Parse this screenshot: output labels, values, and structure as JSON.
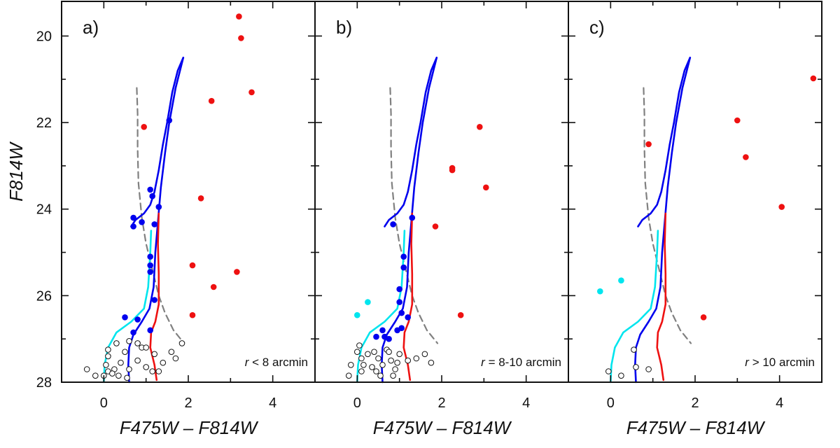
{
  "chart_data": {
    "type": "scatter",
    "figure_ylabel": "F814W",
    "xlabel": "F475W – F814W",
    "xlim": [
      -1.0,
      5.0
    ],
    "ylim": [
      28,
      19.2
    ],
    "xticks": [
      0,
      2,
      4
    ],
    "yticks": [
      20,
      22,
      24,
      26,
      28
    ],
    "colors": {
      "red": "#ee1111",
      "blue": "#0000ee",
      "cyan": "#00e5ee",
      "open": "#111111",
      "dashed": "#808080"
    },
    "isochrones": [
      {
        "name": "dashed",
        "style": "dashed",
        "color": "#808080",
        "points": [
          [
            0.78,
            21.2
          ],
          [
            0.8,
            21.8
          ],
          [
            0.8,
            22.6
          ],
          [
            0.82,
            23.4
          ],
          [
            0.9,
            24.2
          ],
          [
            1.0,
            24.8
          ],
          [
            1.15,
            25.4
          ],
          [
            1.3,
            26.0
          ],
          [
            1.45,
            26.4
          ],
          [
            1.65,
            26.8
          ],
          [
            1.9,
            27.1
          ]
        ]
      },
      {
        "name": "cyan",
        "style": "solid",
        "color": "#00e5ee",
        "points": [
          [
            0.0,
            28.0
          ],
          [
            0.02,
            27.6
          ],
          [
            0.1,
            27.2
          ],
          [
            0.3,
            26.85
          ],
          [
            0.65,
            26.6
          ],
          [
            0.95,
            26.3
          ],
          [
            1.05,
            25.8
          ],
          [
            1.1,
            25.0
          ],
          [
            1.12,
            24.5
          ]
        ]
      },
      {
        "name": "blue-ms",
        "style": "solid",
        "color": "#0000ee",
        "points": [
          [
            0.6,
            28.0
          ],
          [
            0.58,
            27.6
          ],
          [
            0.6,
            27.2
          ],
          [
            0.7,
            26.9
          ],
          [
            0.9,
            26.6
          ],
          [
            1.08,
            26.3
          ],
          [
            1.18,
            25.8
          ],
          [
            1.22,
            25.0
          ],
          [
            1.28,
            24.3
          ],
          [
            1.35,
            23.5
          ],
          [
            1.45,
            22.7
          ],
          [
            1.55,
            22.0
          ],
          [
            1.7,
            21.2
          ],
          [
            1.88,
            20.5
          ]
        ]
      },
      {
        "name": "blue-branch",
        "style": "solid",
        "color": "#0000ee",
        "points": [
          [
            0.65,
            24.4
          ],
          [
            0.75,
            24.25
          ],
          [
            0.95,
            24.1
          ],
          [
            1.1,
            23.9
          ],
          [
            1.2,
            23.6
          ],
          [
            1.3,
            23.1
          ],
          [
            1.4,
            22.5
          ],
          [
            1.5,
            22.0
          ],
          [
            1.62,
            21.3
          ],
          [
            1.75,
            20.8
          ],
          [
            1.88,
            20.5
          ]
        ]
      },
      {
        "name": "red",
        "style": "solid",
        "color": "#ee1111",
        "points": [
          [
            1.25,
            27.95
          ],
          [
            1.2,
            27.6
          ],
          [
            1.1,
            27.2
          ],
          [
            1.12,
            26.85
          ],
          [
            1.22,
            26.6
          ],
          [
            1.3,
            26.2
          ],
          [
            1.3,
            25.5
          ],
          [
            1.28,
            24.8
          ],
          [
            1.3,
            24.1
          ]
        ]
      }
    ],
    "panels": [
      {
        "label": "a)",
        "annotation_r": "r",
        "annotation_rest": "< 8 arcmin",
        "series": [
          {
            "name": "red",
            "points": [
              [
                3.2,
                19.55
              ],
              [
                3.25,
                20.05
              ],
              [
                3.5,
                21.3
              ],
              [
                2.55,
                21.5
              ],
              [
                0.95,
                22.1
              ],
              [
                2.3,
                23.75
              ],
              [
                2.1,
                25.3
              ],
              [
                3.15,
                25.45
              ],
              [
                2.6,
                25.8
              ],
              [
                2.1,
                26.45
              ]
            ]
          },
          {
            "name": "blue",
            "points": [
              [
                1.55,
                21.95
              ],
              [
                1.1,
                23.55
              ],
              [
                1.15,
                23.7
              ],
              [
                1.3,
                23.95
              ],
              [
                0.7,
                24.2
              ],
              [
                0.9,
                24.3
              ],
              [
                0.7,
                24.4
              ],
              [
                1.2,
                24.35
              ],
              [
                1.1,
                25.1
              ],
              [
                1.1,
                25.3
              ],
              [
                1.1,
                25.45
              ],
              [
                1.2,
                26.1
              ],
              [
                0.5,
                26.5
              ],
              [
                0.8,
                26.55
              ],
              [
                1.1,
                26.8
              ],
              [
                0.7,
                26.85
              ]
            ]
          },
          {
            "name": "open",
            "points": [
              [
                0.3,
                27.1
              ],
              [
                0.1,
                27.25
              ],
              [
                0.1,
                27.4
              ],
              [
                0.05,
                27.6
              ],
              [
                0.1,
                27.75
              ],
              [
                -0.4,
                27.7
              ],
              [
                -0.2,
                27.85
              ],
              [
                0.0,
                27.85
              ],
              [
                0.25,
                27.7
              ],
              [
                0.5,
                27.3
              ],
              [
                0.6,
                27.05
              ],
              [
                0.8,
                27.1
              ],
              [
                0.9,
                27.2
              ],
              [
                1.0,
                27.2
              ],
              [
                1.2,
                27.35
              ],
              [
                1.4,
                27.55
              ],
              [
                1.6,
                27.3
              ],
              [
                1.7,
                27.45
              ],
              [
                1.85,
                27.1
              ],
              [
                0.4,
                27.55
              ],
              [
                0.6,
                27.7
              ],
              [
                0.8,
                27.5
              ],
              [
                1.0,
                27.65
              ],
              [
                0.35,
                27.85
              ],
              [
                0.55,
                27.9
              ],
              [
                1.15,
                27.75
              ],
              [
                1.3,
                27.75
              ],
              [
                0.2,
                27.8
              ]
            ]
          }
        ]
      },
      {
        "label": "b)",
        "annotation_r": "r",
        "annotation_rest": "= 8-10 arcmin",
        "series": [
          {
            "name": "red",
            "points": [
              [
                2.9,
                22.1
              ],
              [
                2.25,
                23.05
              ],
              [
                2.25,
                23.1
              ],
              [
                3.05,
                23.5
              ],
              [
                1.85,
                24.4
              ],
              [
                2.45,
                26.45
              ]
            ]
          },
          {
            "name": "blue",
            "points": [
              [
                1.3,
                24.2
              ],
              [
                0.85,
                24.35
              ],
              [
                1.1,
                25.1
              ],
              [
                1.1,
                25.35
              ],
              [
                1.0,
                25.85
              ],
              [
                1.0,
                26.15
              ],
              [
                1.05,
                26.4
              ],
              [
                1.2,
                26.5
              ],
              [
                0.45,
                26.95
              ],
              [
                0.6,
                26.8
              ],
              [
                0.65,
                26.95
              ],
              [
                0.75,
                27.0
              ],
              [
                0.95,
                26.8
              ],
              [
                1.05,
                26.75
              ]
            ]
          },
          {
            "name": "cyan",
            "points": [
              [
                0.25,
                26.15
              ],
              [
                0.0,
                26.45
              ]
            ]
          },
          {
            "name": "open",
            "points": [
              [
                0.05,
                27.15
              ],
              [
                0.0,
                27.3
              ],
              [
                0.1,
                27.45
              ],
              [
                -0.15,
                27.6
              ],
              [
                -0.2,
                27.85
              ],
              [
                0.1,
                27.75
              ],
              [
                0.35,
                27.65
              ],
              [
                0.4,
                27.3
              ],
              [
                0.5,
                27.45
              ],
              [
                0.7,
                27.25
              ],
              [
                0.75,
                27.3
              ],
              [
                0.8,
                27.5
              ],
              [
                0.9,
                27.7
              ],
              [
                0.55,
                27.85
              ],
              [
                0.25,
                27.35
              ],
              [
                0.6,
                27.6
              ],
              [
                0.85,
                27.85
              ],
              [
                1.0,
                27.35
              ],
              [
                1.2,
                27.5
              ],
              [
                1.4,
                27.45
              ],
              [
                1.6,
                27.35
              ],
              [
                1.75,
                27.55
              ],
              [
                0.15,
                27.6
              ],
              [
                0.45,
                27.75
              ],
              [
                0.95,
                27.55
              ]
            ]
          }
        ]
      },
      {
        "label": "c)",
        "annotation_r": "r",
        "annotation_rest": "> 10 arcmin",
        "series": [
          {
            "name": "red",
            "points": [
              [
                4.8,
                20.98
              ],
              [
                3.0,
                21.95
              ],
              [
                0.9,
                22.5
              ],
              [
                3.2,
                22.8
              ],
              [
                4.05,
                23.95
              ],
              [
                2.2,
                26.5
              ]
            ]
          },
          {
            "name": "cyan",
            "points": [
              [
                0.25,
                25.65
              ],
              [
                -0.25,
                25.9
              ]
            ]
          },
          {
            "name": "open",
            "points": [
              [
                0.55,
                27.25
              ],
              [
                0.6,
                27.65
              ],
              [
                0.9,
                27.7
              ],
              [
                -0.05,
                27.75
              ],
              [
                0.25,
                27.85
              ]
            ]
          }
        ]
      }
    ]
  }
}
